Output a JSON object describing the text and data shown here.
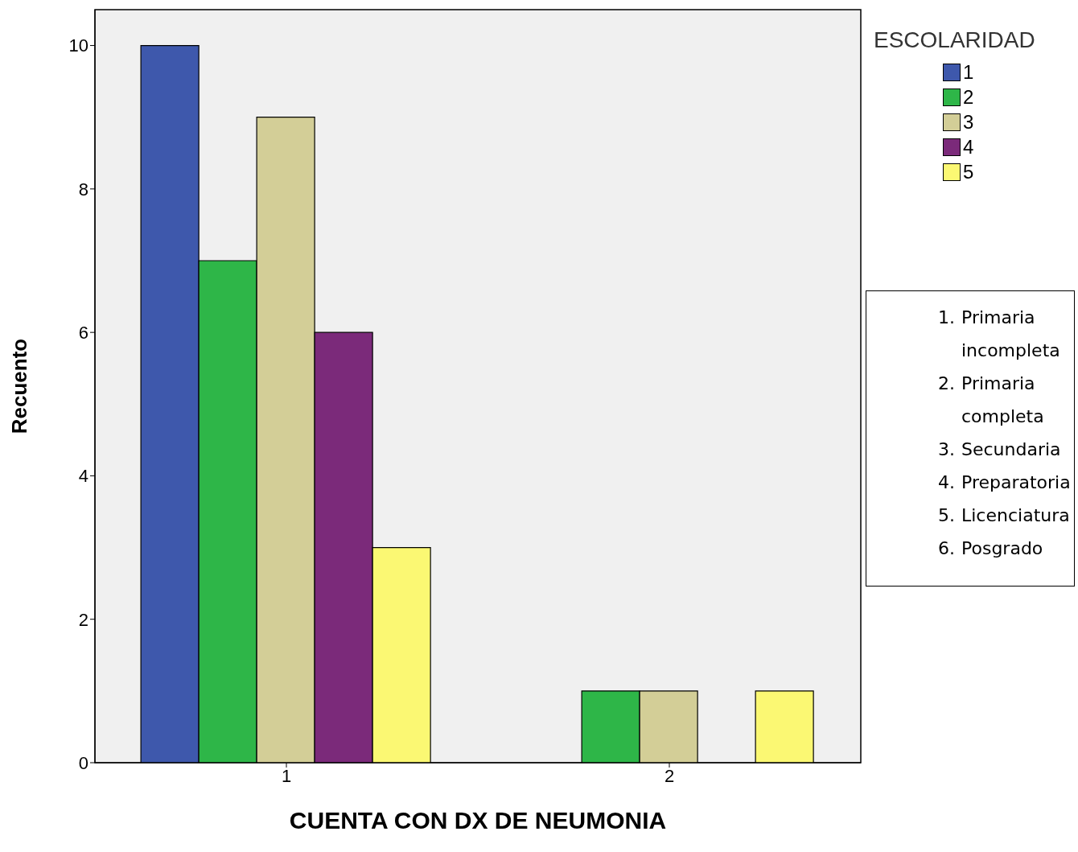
{
  "chart_data": {
    "type": "bar",
    "xlabel": "CUENTA CON DX DE NEUMONIA",
    "ylabel": "Recuento",
    "legend_title": "ESCOLARIDAD",
    "legend": "top right",
    "categories": [
      "1",
      "2"
    ],
    "series": [
      {
        "name": "1",
        "color": "#3e58ac",
        "values": [
          10,
          0
        ]
      },
      {
        "name": "2",
        "color": "#2eb648",
        "values": [
          7,
          1
        ]
      },
      {
        "name": "3",
        "color": "#d3ce97",
        "values": [
          9,
          1
        ]
      },
      {
        "name": "4",
        "color": "#7b2a7a",
        "values": [
          6,
          0
        ]
      },
      {
        "name": "5",
        "color": "#fbf873",
        "values": [
          3,
          1
        ]
      }
    ],
    "ylim": [
      0,
      10.5
    ],
    "yticks": [
      0,
      2,
      4,
      6,
      8,
      10
    ],
    "grid": false,
    "annotations": [
      "1. Primaria incompleta",
      "2. Primaria completa",
      "3. Secundaria",
      "4. Preparatoria",
      "5. Licenciatura",
      "6. Posgrado"
    ]
  }
}
